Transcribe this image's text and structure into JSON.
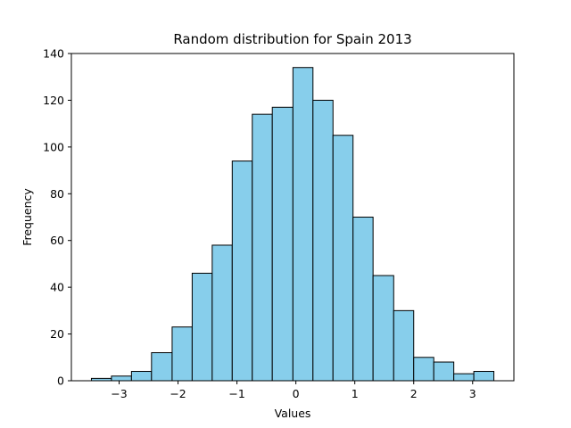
{
  "chart_data": {
    "type": "bar",
    "title": "Random distribution for Spain 2013",
    "xlabel": "Values",
    "ylabel": "Frequency",
    "bar_color": "#87ceeb",
    "edge_color": "#000000",
    "bins": [
      {
        "x0": -3.47,
        "x1": -3.13,
        "count": 1
      },
      {
        "x0": -3.13,
        "x1": -2.79,
        "count": 2
      },
      {
        "x0": -2.79,
        "x1": -2.45,
        "count": 4
      },
      {
        "x0": -2.45,
        "x1": -2.1,
        "count": 12
      },
      {
        "x0": -2.1,
        "x1": -1.76,
        "count": 23
      },
      {
        "x0": -1.76,
        "x1": -1.42,
        "count": 46
      },
      {
        "x0": -1.42,
        "x1": -1.08,
        "count": 58
      },
      {
        "x0": -1.08,
        "x1": -0.74,
        "count": 94
      },
      {
        "x0": -0.74,
        "x1": -0.4,
        "count": 114
      },
      {
        "x0": -0.4,
        "x1": -0.05,
        "count": 117
      },
      {
        "x0": -0.05,
        "x1": 0.29,
        "count": 134
      },
      {
        "x0": 0.29,
        "x1": 0.63,
        "count": 120
      },
      {
        "x0": 0.63,
        "x1": 0.97,
        "count": 105
      },
      {
        "x0": 0.97,
        "x1": 1.31,
        "count": 70
      },
      {
        "x0": 1.31,
        "x1": 1.66,
        "count": 45
      },
      {
        "x0": 1.66,
        "x1": 2.0,
        "count": 30
      },
      {
        "x0": 2.0,
        "x1": 2.34,
        "count": 10
      },
      {
        "x0": 2.34,
        "x1": 2.68,
        "count": 8
      },
      {
        "x0": 2.68,
        "x1": 3.02,
        "count": 3
      },
      {
        "x0": 3.02,
        "x1": 3.36,
        "count": 4
      }
    ],
    "xlim": [
      -3.81,
      3.7
    ],
    "ylim": [
      0,
      140
    ],
    "xticks": [
      {
        "value": -3,
        "label": "−3"
      },
      {
        "value": -2,
        "label": "−2"
      },
      {
        "value": -1,
        "label": "−1"
      },
      {
        "value": 0,
        "label": "0"
      },
      {
        "value": 1,
        "label": "1"
      },
      {
        "value": 2,
        "label": "2"
      },
      {
        "value": 3,
        "label": "3"
      }
    ],
    "yticks": [
      {
        "value": 0,
        "label": "0"
      },
      {
        "value": 20,
        "label": "20"
      },
      {
        "value": 40,
        "label": "40"
      },
      {
        "value": 60,
        "label": "60"
      },
      {
        "value": 80,
        "label": "80"
      },
      {
        "value": 100,
        "label": "100"
      },
      {
        "value": 120,
        "label": "120"
      },
      {
        "value": 140,
        "label": "140"
      }
    ],
    "grid": false,
    "legend": "none"
  }
}
